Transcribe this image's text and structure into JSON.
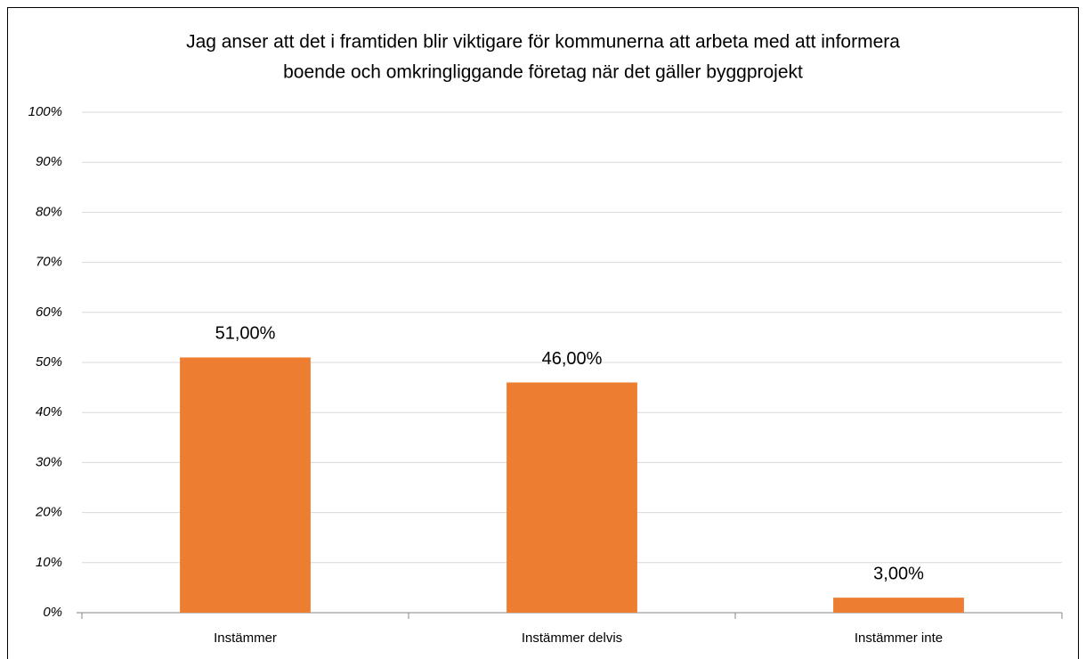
{
  "chart_data": {
    "type": "bar",
    "title": [
      "Jag anser att det i framtiden blir viktigare för kommunerna att arbeta med att informera",
      "boende och omkringliggande företag när det gäller byggprojekt"
    ],
    "categories": [
      "Instämmer",
      "Instämmer delvis",
      "Instämmer inte"
    ],
    "values": [
      51,
      46,
      3
    ],
    "value_labels": [
      "51,00%",
      "46,00%",
      "3,00%"
    ],
    "color": "#ed7d31",
    "ylim": [
      0,
      100
    ],
    "yticks": [
      {
        "value": 0,
        "label": "0%"
      },
      {
        "value": 10,
        "label": "10%"
      },
      {
        "value": 20,
        "label": "20%"
      },
      {
        "value": 30,
        "label": "30%"
      },
      {
        "value": 40,
        "label": "40%"
      },
      {
        "value": 50,
        "label": "50%"
      },
      {
        "value": 60,
        "label": "60%"
      },
      {
        "value": 70,
        "label": "70%"
      },
      {
        "value": 80,
        "label": "80%"
      },
      {
        "value": 90,
        "label": "90%"
      },
      {
        "value": 100,
        "label": "100%"
      }
    ],
    "grid": true
  }
}
